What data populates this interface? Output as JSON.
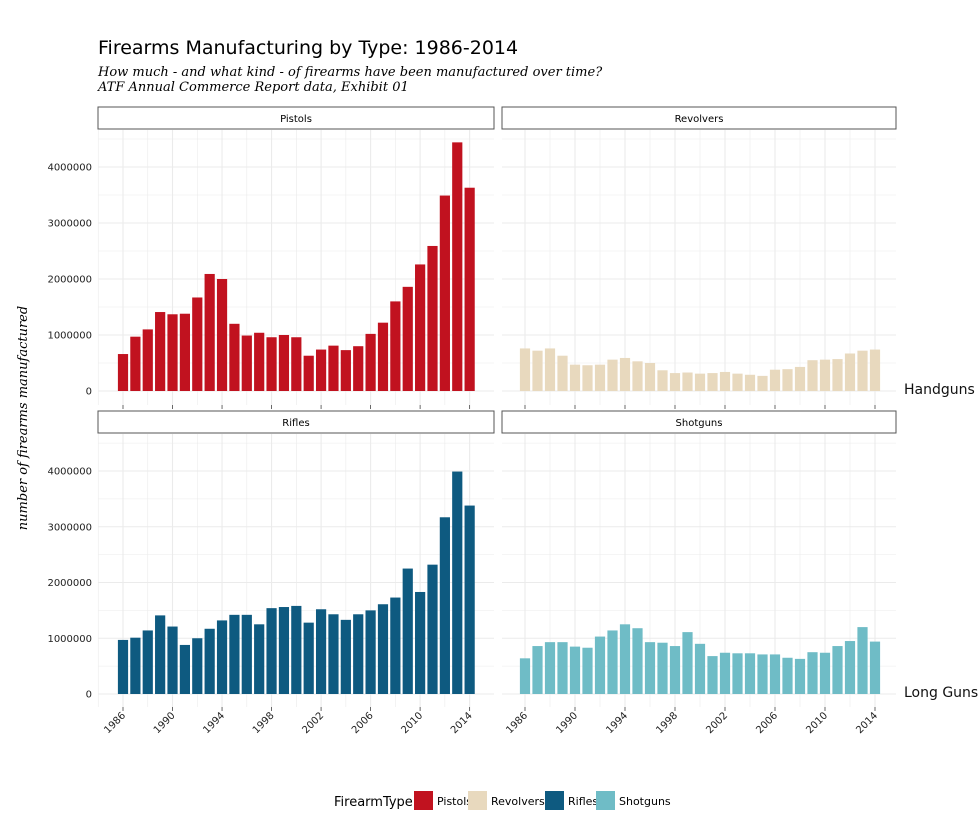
{
  "chart_data": {
    "type": "bar",
    "title": "Firearms Manufacturing by Type: 1986-2014",
    "subtitle_lines": [
      "How much - and what kind - of firearms have been manufactured over time?",
      "ATF Annual Commerce Report data, Exhibit 01"
    ],
    "ylabel": "number of firearms manufactured",
    "xlabel": "",
    "years": [
      1986,
      1987,
      1988,
      1989,
      1990,
      1991,
      1992,
      1993,
      1994,
      1995,
      1996,
      1997,
      1998,
      1999,
      2000,
      2001,
      2002,
      2003,
      2004,
      2005,
      2006,
      2007,
      2008,
      2009,
      2010,
      2011,
      2012,
      2013,
      2014
    ],
    "x_tick_labels": [
      "1986",
      "1990",
      "1994",
      "1998",
      "2002",
      "2006",
      "2010",
      "2014"
    ],
    "x_tick_years": [
      1986,
      1990,
      1994,
      1998,
      2002,
      2006,
      2010,
      2014
    ],
    "y_tick_labels": [
      "0",
      "1000000",
      "2000000",
      "3000000",
      "4000000"
    ],
    "y_tick_values": [
      0,
      1000000,
      2000000,
      3000000,
      4000000
    ],
    "ylim": [
      0,
      4500000
    ],
    "grid": true,
    "row_labels": [
      "Handguns",
      "Long Guns"
    ],
    "panels": [
      {
        "name": "Pistols",
        "row": 0,
        "col": 0,
        "color": "#C1121F",
        "values": [
          660000,
          970000,
          1100000,
          1410000,
          1370000,
          1380000,
          1670000,
          2090000,
          2000000,
          1200000,
          990000,
          1040000,
          960000,
          1000000,
          960000,
          630000,
          740000,
          810000,
          730000,
          800000,
          1020000,
          1220000,
          1600000,
          1860000,
          2260000,
          2590000,
          3490000,
          4440000,
          3630000
        ]
      },
      {
        "name": "Revolvers",
        "row": 0,
        "col": 1,
        "color": "#E8D9BE",
        "values": [
          760000,
          720000,
          760000,
          630000,
          470000,
          460000,
          470000,
          560000,
          590000,
          530000,
          500000,
          370000,
          320000,
          330000,
          310000,
          320000,
          340000,
          310000,
          290000,
          270000,
          380000,
          390000,
          430000,
          550000,
          560000,
          570000,
          670000,
          720000,
          740000
        ]
      },
      {
        "name": "Rifles",
        "row": 1,
        "col": 0,
        "color": "#0E5A80",
        "values": [
          970000,
          1010000,
          1140000,
          1410000,
          1210000,
          880000,
          1000000,
          1170000,
          1320000,
          1420000,
          1420000,
          1250000,
          1540000,
          1560000,
          1580000,
          1280000,
          1520000,
          1430000,
          1330000,
          1430000,
          1500000,
          1610000,
          1730000,
          2250000,
          1830000,
          2320000,
          3170000,
          3990000,
          3380000
        ]
      },
      {
        "name": "Shotguns",
        "row": 1,
        "col": 1,
        "color": "#6FBCC6",
        "values": [
          640000,
          860000,
          930000,
          930000,
          850000,
          830000,
          1030000,
          1140000,
          1250000,
          1180000,
          930000,
          920000,
          860000,
          1110000,
          900000,
          680000,
          740000,
          730000,
          730000,
          710000,
          710000,
          650000,
          630000,
          750000,
          740000,
          860000,
          950000,
          1200000,
          940000
        ]
      }
    ],
    "legend": {
      "title": "FirearmType",
      "position": "bottom",
      "items": [
        {
          "label": "Pistols",
          "color": "#C1121F"
        },
        {
          "label": "Revolvers",
          "color": "#E8D9BE"
        },
        {
          "label": "Rifles",
          "color": "#0E5A80"
        },
        {
          "label": "Shotguns",
          "color": "#6FBCC6"
        }
      ]
    }
  }
}
